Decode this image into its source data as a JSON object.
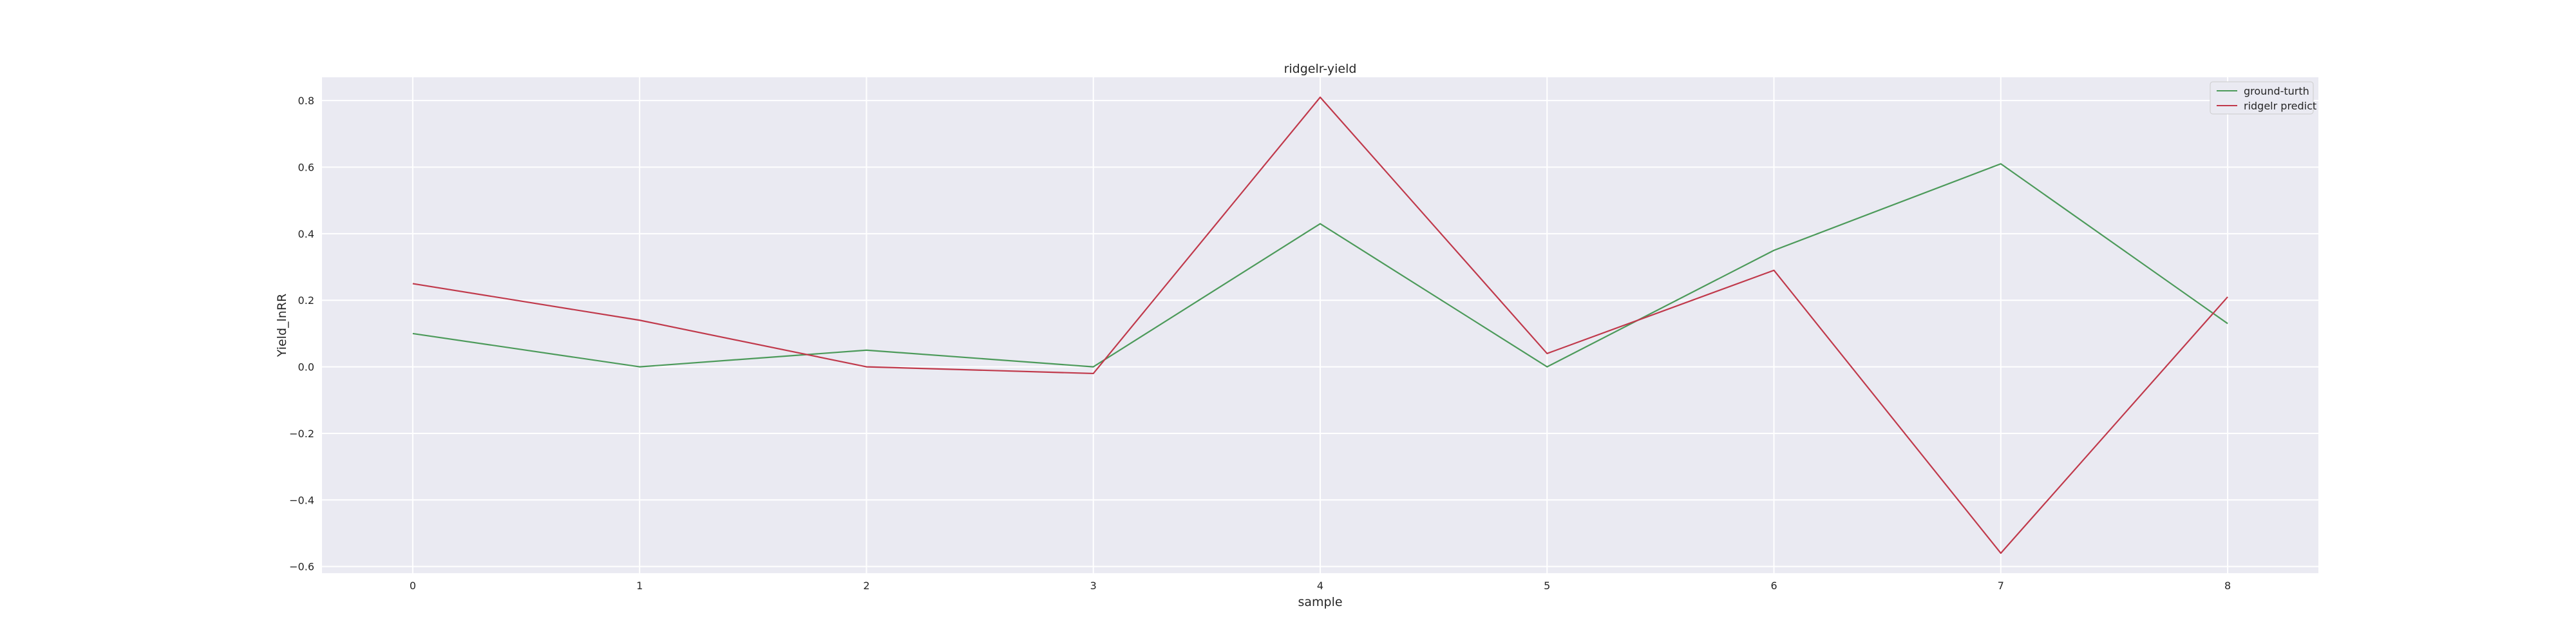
{
  "chart_data": {
    "type": "line",
    "title": "ridgelr-yield",
    "xlabel": "sample",
    "ylabel": "Yield_lnRR",
    "x": [
      0,
      1,
      2,
      3,
      4,
      5,
      6,
      7,
      8
    ],
    "xlim": [
      -0.4,
      8.4
    ],
    "ylim": [
      -0.62,
      0.87
    ],
    "xticks": [
      "0",
      "1",
      "2",
      "3",
      "4",
      "5",
      "6",
      "7",
      "8"
    ],
    "yticks": [
      {
        "value": 0.8,
        "label": "0.8"
      },
      {
        "value": 0.6,
        "label": "0.6"
      },
      {
        "value": 0.4,
        "label": "0.4"
      },
      {
        "value": 0.2,
        "label": "0.2"
      },
      {
        "value": 0.0,
        "label": "0.0"
      },
      {
        "value": -0.2,
        "label": "−0.2"
      },
      {
        "value": -0.4,
        "label": "−0.4"
      },
      {
        "value": -0.6,
        "label": "−0.6"
      }
    ],
    "grid": true,
    "legend_position": "top-right",
    "series": [
      {
        "name": "ground-turth",
        "color": "#4c9a5a",
        "values": [
          0.1,
          0.0,
          0.05,
          0.0,
          0.43,
          0.0,
          0.35,
          0.61,
          0.13
        ]
      },
      {
        "name": "ridgelr predict",
        "color": "#c0394b",
        "values": [
          0.25,
          0.14,
          0.0,
          -0.02,
          0.81,
          0.04,
          0.29,
          -0.56,
          0.21
        ]
      }
    ],
    "colors": {
      "plot_background": "#eaeaf2",
      "grid": "#ffffff"
    }
  }
}
